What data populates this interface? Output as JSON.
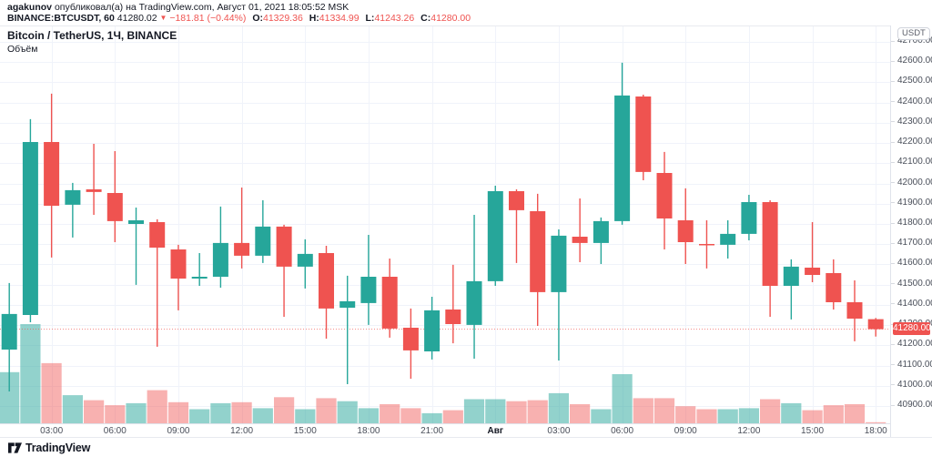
{
  "header": {
    "author": "agakunov",
    "published_text": "опубликовал(а) на TradingView.com, Август 01, 2021 18:05:52 MSK",
    "quote": {
      "symbol": "BINANCE:BTCUSDT, 60",
      "last": "41280.02",
      "direction_icon": "▼",
      "change": "−181.81 (−0.44%)",
      "o_label": "O:",
      "o": "41329.36",
      "h_label": "H:",
      "h": "41334.99",
      "l_label": "L:",
      "l": "41243.26",
      "c_label": "C:",
      "c": "41280.00"
    }
  },
  "legend": {
    "title": "Bitcoin / TetherUS, 1Ч, BINANCE",
    "indicator": "Объём"
  },
  "price_axis": {
    "currency": "USDT",
    "current_price_label": "41280.00",
    "ticks": [
      "42700.00",
      "42600.00",
      "42500.00",
      "42400.00",
      "42300.00",
      "42200.00",
      "42100.00",
      "42000.00",
      "41900.00",
      "41800.00",
      "41700.00",
      "41600.00",
      "41500.00",
      "41400.00",
      "41300.00",
      "41200.00",
      "41100.00",
      "41000.00",
      "40900.00"
    ]
  },
  "time_axis": {
    "ticks": [
      {
        "label": "03:00",
        "index": 2,
        "bold": false
      },
      {
        "label": "06:00",
        "index": 5,
        "bold": false
      },
      {
        "label": "09:00",
        "index": 8,
        "bold": false
      },
      {
        "label": "12:00",
        "index": 11,
        "bold": false
      },
      {
        "label": "15:00",
        "index": 14,
        "bold": false
      },
      {
        "label": "18:00",
        "index": 17,
        "bold": false
      },
      {
        "label": "21:00",
        "index": 20,
        "bold": false
      },
      {
        "label": "Авг",
        "index": 23,
        "bold": true
      },
      {
        "label": "03:00",
        "index": 26,
        "bold": false
      },
      {
        "label": "06:00",
        "index": 29,
        "bold": false
      },
      {
        "label": "09:00",
        "index": 32,
        "bold": false
      },
      {
        "label": "12:00",
        "index": 35,
        "bold": false
      },
      {
        "label": "15:00",
        "index": 38,
        "bold": false
      },
      {
        "label": "18:00",
        "index": 41,
        "bold": false
      }
    ]
  },
  "footer": {
    "brand": "TradingView"
  },
  "colors": {
    "up": "#26a69a",
    "down": "#ef5350",
    "volume_up": "rgba(38,166,154,0.5)",
    "volume_down": "rgba(239,83,80,0.45)",
    "grid": "#f0f3fa",
    "axis_text": "#4a4f5a",
    "text": "#131722",
    "accent_red": "#ef5350"
  },
  "chart_data": {
    "type": "candlestick",
    "title": "Bitcoin / TetherUS, 1Ч, BINANCE",
    "symbol": "BINANCE:BTCUSDT",
    "interval": "1Ч (60)",
    "exchange": "BINANCE",
    "price_range": [
      40900,
      42700
    ],
    "grid": true,
    "volume_overlay": true,
    "volume_scale": "relative_0_1",
    "current_price": 41280.0,
    "candles": {
      "columns": [
        "time",
        "open",
        "high",
        "low",
        "close",
        "volume_rel"
      ],
      "rows": [
        [
          "01:00",
          41179,
          41508,
          40972,
          41355,
          0.52
        ],
        [
          "02:00",
          41350,
          42318,
          41314,
          42205,
          1.0
        ],
        [
          "03:00",
          42205,
          42444,
          41634,
          41890,
          0.61
        ],
        [
          "04:00",
          41895,
          42003,
          41733,
          41967,
          0.29
        ],
        [
          "05:00",
          41971,
          42196,
          41845,
          41958,
          0.24
        ],
        [
          "06:00",
          41953,
          42160,
          41710,
          41814,
          0.19
        ],
        [
          "07:00",
          41800,
          41881,
          41499,
          41818,
          0.21
        ],
        [
          "08:00",
          41809,
          41823,
          41193,
          41683,
          0.34
        ],
        [
          "09:00",
          41674,
          41697,
          41373,
          41530,
          0.22
        ],
        [
          "10:00",
          41530,
          41656,
          41494,
          41539,
          0.15
        ],
        [
          "11:00",
          41539,
          41886,
          41485,
          41706,
          0.21
        ],
        [
          "12:00",
          41706,
          41980,
          41580,
          41643,
          0.22
        ],
        [
          "13:00",
          41643,
          41917,
          41607,
          41787,
          0.16
        ],
        [
          "14:00",
          41787,
          41796,
          41341,
          41589,
          0.27
        ],
        [
          "15:00",
          41589,
          41724,
          41481,
          41652,
          0.15
        ],
        [
          "16:00",
          41656,
          41692,
          41233,
          41382,
          0.26
        ],
        [
          "17:00",
          41386,
          41544,
          41008,
          41418,
          0.23
        ],
        [
          "18:00",
          41409,
          41746,
          41301,
          41539,
          0.16
        ],
        [
          "19:00",
          41539,
          41629,
          41238,
          41283,
          0.2
        ],
        [
          "20:00",
          41287,
          41382,
          41035,
          41175,
          0.16
        ],
        [
          "21:00",
          41170,
          41440,
          41130,
          41373,
          0.11
        ],
        [
          "22:00",
          41377,
          41598,
          41210,
          41305,
          0.14
        ],
        [
          "23:00",
          41301,
          41845,
          41134,
          41517,
          0.25
        ],
        [
          "00:00",
          41517,
          41989,
          41494,
          41962,
          0.25
        ],
        [
          "01:00",
          41962,
          41971,
          41607,
          41868,
          0.23
        ],
        [
          "02:00",
          41863,
          41949,
          41296,
          41463,
          0.24
        ],
        [
          "03:00",
          41463,
          41773,
          41125,
          41742,
          0.31
        ],
        [
          "04:00",
          41737,
          41926,
          41611,
          41706,
          0.2
        ],
        [
          "05:00",
          41706,
          41832,
          41602,
          41814,
          0.15
        ],
        [
          "06:00",
          41814,
          42597,
          41796,
          42435,
          0.5
        ],
        [
          "07:00",
          42430,
          42439,
          42016,
          42057,
          0.26
        ],
        [
          "08:00",
          42052,
          42156,
          41674,
          41827,
          0.26
        ],
        [
          "09:00",
          41818,
          41976,
          41602,
          41710,
          0.18
        ],
        [
          "10:00",
          41701,
          41818,
          41580,
          41697,
          0.15
        ],
        [
          "11:00",
          41697,
          41818,
          41629,
          41751,
          0.15
        ],
        [
          "12:00",
          41751,
          41944,
          41719,
          41908,
          0.16
        ],
        [
          "13:00",
          41908,
          41917,
          41341,
          41494,
          0.25
        ],
        [
          "14:00",
          41494,
          41625,
          41328,
          41589,
          0.21
        ],
        [
          "15:00",
          41584,
          41809,
          41512,
          41548,
          0.14
        ],
        [
          "16:00",
          41557,
          41625,
          41377,
          41413,
          0.19
        ],
        [
          "17:00",
          41413,
          41521,
          41220,
          41332,
          0.2
        ],
        [
          "18:00",
          41329.36,
          41334.99,
          41243.26,
          41280.0,
          0.02
        ]
      ]
    }
  }
}
